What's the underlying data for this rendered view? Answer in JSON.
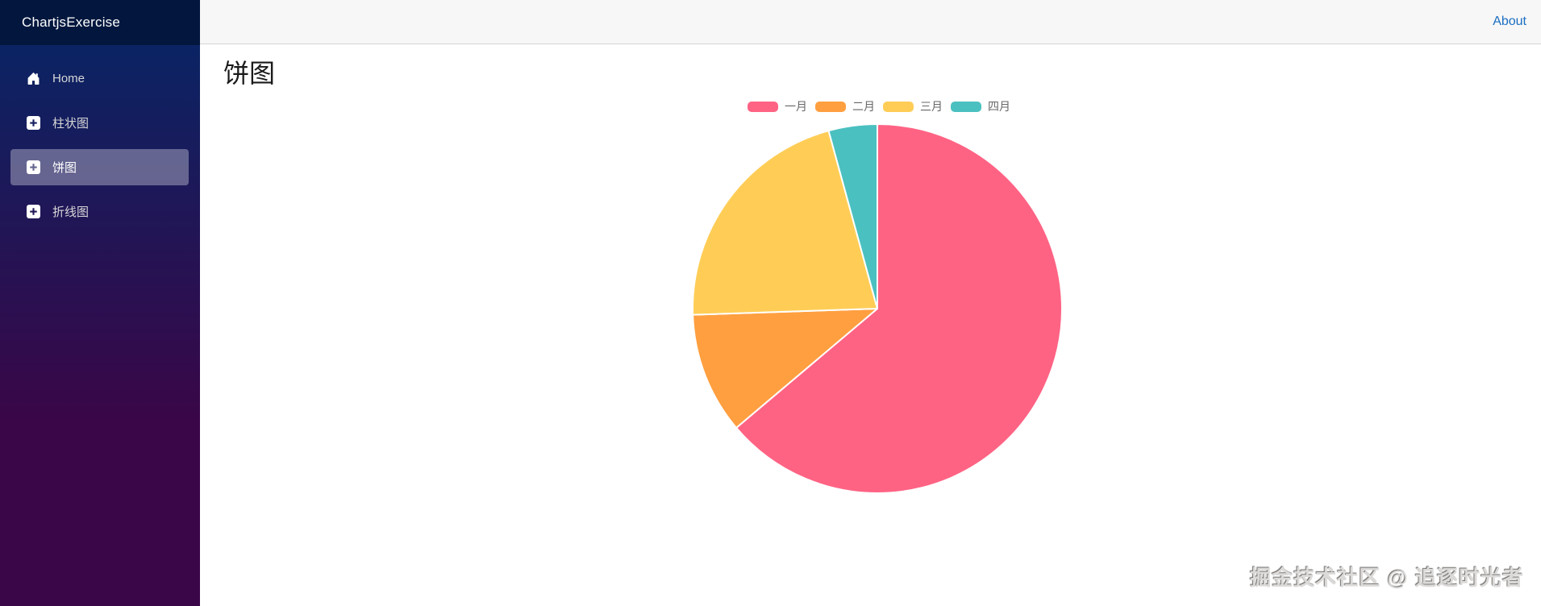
{
  "sidebar": {
    "brand": "ChartjsExercise",
    "items": [
      {
        "label": "Home",
        "icon": "home-icon",
        "active": false
      },
      {
        "label": "柱状图",
        "icon": "plus-square-icon",
        "active": false
      },
      {
        "label": "饼图",
        "icon": "plus-square-icon",
        "active": true
      },
      {
        "label": "折线图",
        "icon": "plus-square-icon",
        "active": false
      }
    ]
  },
  "header": {
    "about_label": "About"
  },
  "main": {
    "title": "饼图",
    "watermark": "掘金技术社区 @ 追逐时光者"
  },
  "chart_data": {
    "type": "pie",
    "labels": [
      "一月",
      "二月",
      "三月",
      "四月"
    ],
    "values": [
      30,
      5,
      10,
      2
    ],
    "colors": [
      "#FF6384",
      "#FF9F40",
      "#FFCD56",
      "#4BC0C0"
    ],
    "legend_position": "top",
    "border_color": "#ffffff",
    "border_width": 2
  },
  "colors": {
    "sidebar_gradient_top": "#052767",
    "sidebar_gradient_bottom": "#3a0647",
    "brand_bar": "#03173e",
    "active_item_overlay": "rgba(255,255,255,0.33)",
    "top_bar": "#f7f7f7",
    "top_bar_border": "#d6d5d5",
    "link_blue": "#1b6ec2",
    "legend_text": "#666666"
  }
}
